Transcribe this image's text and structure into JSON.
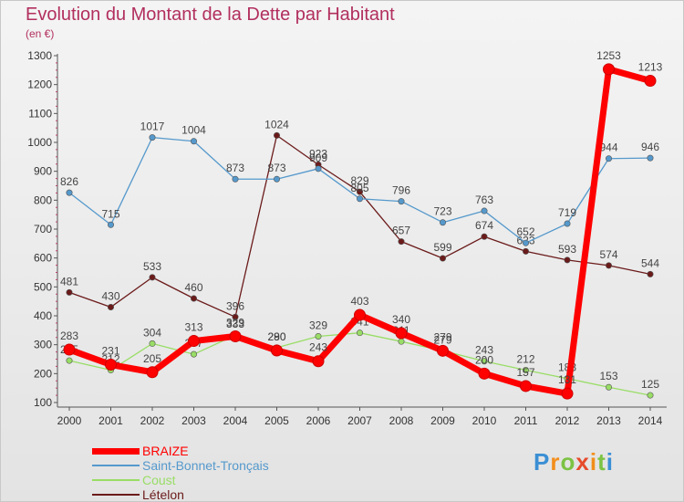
{
  "header": {
    "title": "Evolution du Montant de la Dette par Habitant",
    "subtitle": "(en €)"
  },
  "logo": {
    "text": "Proxiti",
    "letters": [
      "P",
      "r",
      "o",
      "x",
      "i",
      "t",
      "i"
    ]
  },
  "chart_data": {
    "type": "line",
    "title": "Evolution du Montant de la Dette par Habitant",
    "subtitle": "(en €)",
    "xlabel": "",
    "ylabel": "",
    "categories": [
      "2000",
      "2001",
      "2002",
      "2003",
      "2004",
      "2005",
      "2006",
      "2007",
      "2008",
      "2009",
      "2010",
      "2011",
      "2012",
      "2013",
      "2014"
    ],
    "ylim": [
      100,
      1300
    ],
    "yticks": [
      100,
      200,
      300,
      400,
      500,
      600,
      700,
      800,
      900,
      1000,
      1100,
      1200,
      1300
    ],
    "grid": false,
    "legend_position": "bottom-left",
    "series": [
      {
        "name": "Coust",
        "color": "#99dd66",
        "values": [
          245,
          212,
          304,
          267,
          333,
          290,
          329,
          341,
          311,
          279,
          243,
          212,
          183,
          153,
          125
        ]
      },
      {
        "name": "Lételon",
        "color": "#6b1a1a",
        "values": [
          481,
          430,
          533,
          460,
          396,
          1024,
          923,
          829,
          657,
          599,
          674,
          623,
          593,
          574,
          544
        ]
      },
      {
        "name": "Saint-Bonnet-Tronçais",
        "color": "#5599cc",
        "values": [
          826,
          715,
          1017,
          1004,
          873,
          873,
          909,
          805,
          796,
          723,
          763,
          652,
          719,
          944,
          946
        ]
      },
      {
        "name": "BRAIZE",
        "color": "#ff0000",
        "values": [
          283,
          231,
          205,
          313,
          329,
          280,
          243,
          403,
          340,
          279,
          200,
          157,
          131,
          1253,
          1213
        ]
      }
    ],
    "legend_order": [
      "BRAIZE",
      "Saint-Bonnet-Tronçais",
      "Coust",
      "Lételon"
    ]
  }
}
